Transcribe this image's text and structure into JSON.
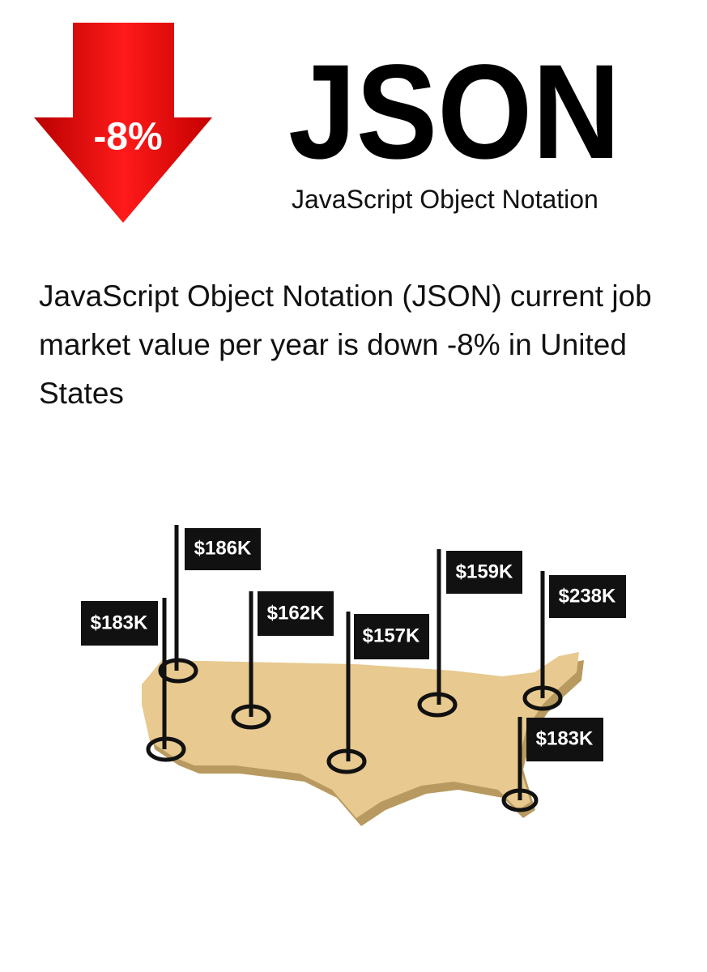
{
  "badge": "-8%",
  "header": {
    "title": "JSON",
    "subtitle": "JavaScript Object Notation"
  },
  "description": "JavaScript Object Notation (JSON) current job market value per year is down -8% in United States",
  "map": {
    "flags": [
      {
        "label": "$183K"
      },
      {
        "label": "$186K"
      },
      {
        "label": "$162K"
      },
      {
        "label": "$157K"
      },
      {
        "label": "$159K"
      },
      {
        "label": "$238K"
      },
      {
        "label": "$183K"
      }
    ]
  }
}
